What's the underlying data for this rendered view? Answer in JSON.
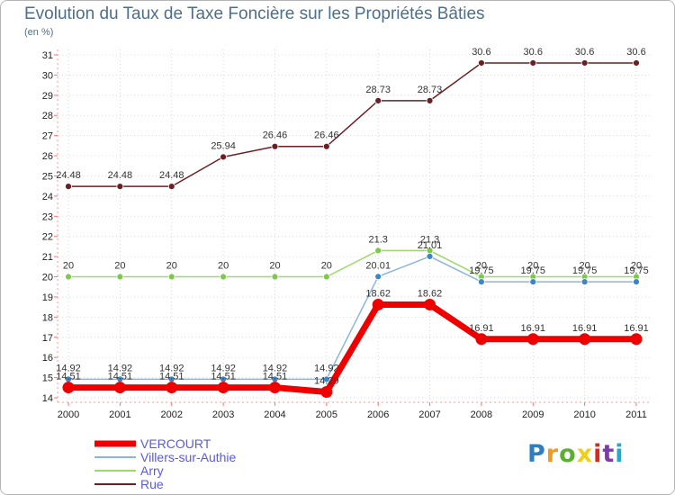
{
  "title": "Evolution du Taux de Taxe Foncière sur les Propriétés Bâties",
  "unit_label": "(en %)",
  "logo": {
    "text": "Proxiti",
    "colors": [
      "#2f7fc0",
      "#f39a1e",
      "#5bb031",
      "#f0ce1d",
      "#d9281f",
      "#7a3fa0",
      "#24a9c9"
    ]
  },
  "chart_data": {
    "type": "line",
    "title": "Evolution du Taux de Taxe Foncière sur les Propriétés Bâties",
    "ylabel": "(en %)",
    "xlabel": "",
    "ylim": [
      14,
      31
    ],
    "yticks": [
      14,
      15,
      16,
      17,
      18,
      19,
      20,
      21,
      22,
      23,
      24,
      25,
      26,
      27,
      28,
      29,
      30,
      31
    ],
    "categories": [
      "2000",
      "2001",
      "2002",
      "2003",
      "2004",
      "2005",
      "2006",
      "2007",
      "2008",
      "2009",
      "2010",
      "2011"
    ],
    "legend_position": "bottom-left",
    "series": [
      {
        "name": "Rue",
        "color": "#6b1f24",
        "marker": "#6b1f24",
        "width": 1.5,
        "r": 3.5,
        "values": [
          24.48,
          24.48,
          24.48,
          25.94,
          26.46,
          26.46,
          28.73,
          28.73,
          30.6,
          30.6,
          30.6,
          30.6
        ],
        "labels": [
          "24.48",
          "24.48",
          "24.48",
          "25.94",
          "26.46",
          "26.46",
          "28.73",
          "28.73",
          "30.6",
          "30.6",
          "30.6",
          "30.6"
        ]
      },
      {
        "name": "Arry",
        "color": "#9cda6a",
        "marker": "#7ec84a",
        "width": 1.5,
        "r": 3.5,
        "values": [
          20,
          20,
          20,
          20,
          20,
          20,
          21.3,
          21.3,
          20,
          20,
          20,
          20
        ],
        "labels": [
          "20",
          "20",
          "20",
          "20",
          "20",
          "20",
          "21.3",
          "21.3",
          "20",
          "20",
          "20",
          "20"
        ]
      },
      {
        "name": "Villers-sur-Authie",
        "color": "#8ab6dc",
        "marker": "#3a86c8",
        "width": 1.5,
        "r": 3.5,
        "values": [
          14.92,
          14.92,
          14.92,
          14.92,
          14.92,
          14.92,
          20.01,
          21.01,
          19.75,
          19.75,
          19.75,
          19.75
        ],
        "labels": [
          "14.92",
          "14.92",
          "14.92",
          "14.92",
          "14.92",
          "14.92",
          "20.01",
          "21.01",
          "19.75",
          "19.75",
          "19.75",
          "19.75"
        ]
      },
      {
        "name": "VERCOURT",
        "color": "#ee0000",
        "marker": "#ee0000",
        "width": 7,
        "r": 6.5,
        "values": [
          14.51,
          14.51,
          14.51,
          14.51,
          14.51,
          14.29,
          18.62,
          18.62,
          16.91,
          16.91,
          16.91,
          16.91
        ],
        "labels": [
          "14.51",
          "14.51",
          "14.51",
          "14.51",
          "14.51",
          "14.29",
          "18.62",
          "18.62",
          "16.91",
          "16.91",
          "16.91",
          "16.91"
        ]
      }
    ],
    "legend": [
      {
        "name": "VERCOURT",
        "color": "#ee0000",
        "width": 7
      },
      {
        "name": "Villers-sur-Authie",
        "color": "#8ab6dc",
        "width": 2
      },
      {
        "name": "Arry",
        "color": "#9cda6a",
        "width": 2
      },
      {
        "name": "Rue",
        "color": "#6b1f24",
        "width": 2
      }
    ]
  }
}
